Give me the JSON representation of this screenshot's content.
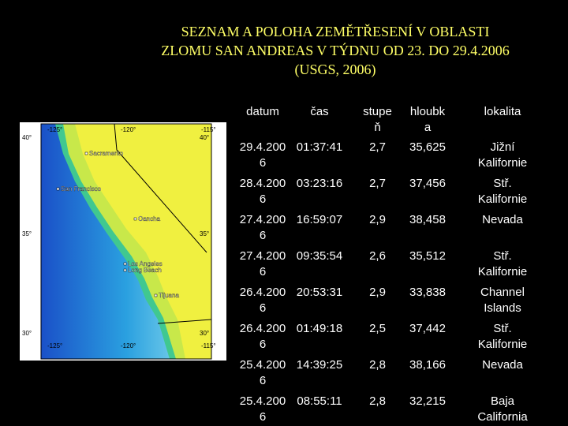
{
  "title": {
    "lines": [
      "SEZNAM A POLOHA ZEMĚTŘESENÍ  V OBLASTI",
      "ZLOMU SAN ANDREAS V TÝDNU OD 23. DO 29.4.2006",
      "(USGS, 2006)"
    ]
  },
  "map": {
    "lon_labels": [
      "-125°",
      "-120°",
      "-115°"
    ],
    "lat_labels": [
      "40°",
      "35°",
      "30°"
    ],
    "places": [
      "Sacramento",
      "San Francisco",
      "Oancha",
      "Los Angeles",
      "Long Beach",
      "Tijuana"
    ]
  },
  "table": {
    "headers": [
      "datum",
      "čas",
      "stupeň",
      "hloubka",
      "lokalita"
    ],
    "rows": [
      [
        "29.4.2006",
        "01:37:41",
        "2,7",
        "35,625",
        "Jižní Kalifornie"
      ],
      [
        "28.4.2006",
        "03:23:16",
        "2,7",
        "37,456",
        "Stř. Kalifornie"
      ],
      [
        "27.4.2006",
        "16:59:07",
        "2,9",
        "38,458",
        "Nevada"
      ],
      [
        "27.4.2006",
        "09:35:54",
        "2,6",
        "35,512",
        "Stř. Kalifornie"
      ],
      [
        "26.4.2006",
        "20:53:31",
        "2,9",
        "33,838",
        "Channel Islands"
      ],
      [
        "26.4.2006",
        "01:49:18",
        "2,5",
        "37,442",
        "Stř. Kalifornie"
      ],
      [
        "25.4.2006",
        "14:39:25",
        "2,8",
        "38,166",
        "Nevada"
      ],
      [
        "25.4.2006",
        "08:55:11",
        "2,8",
        "32,215",
        "Baja California"
      ]
    ]
  }
}
